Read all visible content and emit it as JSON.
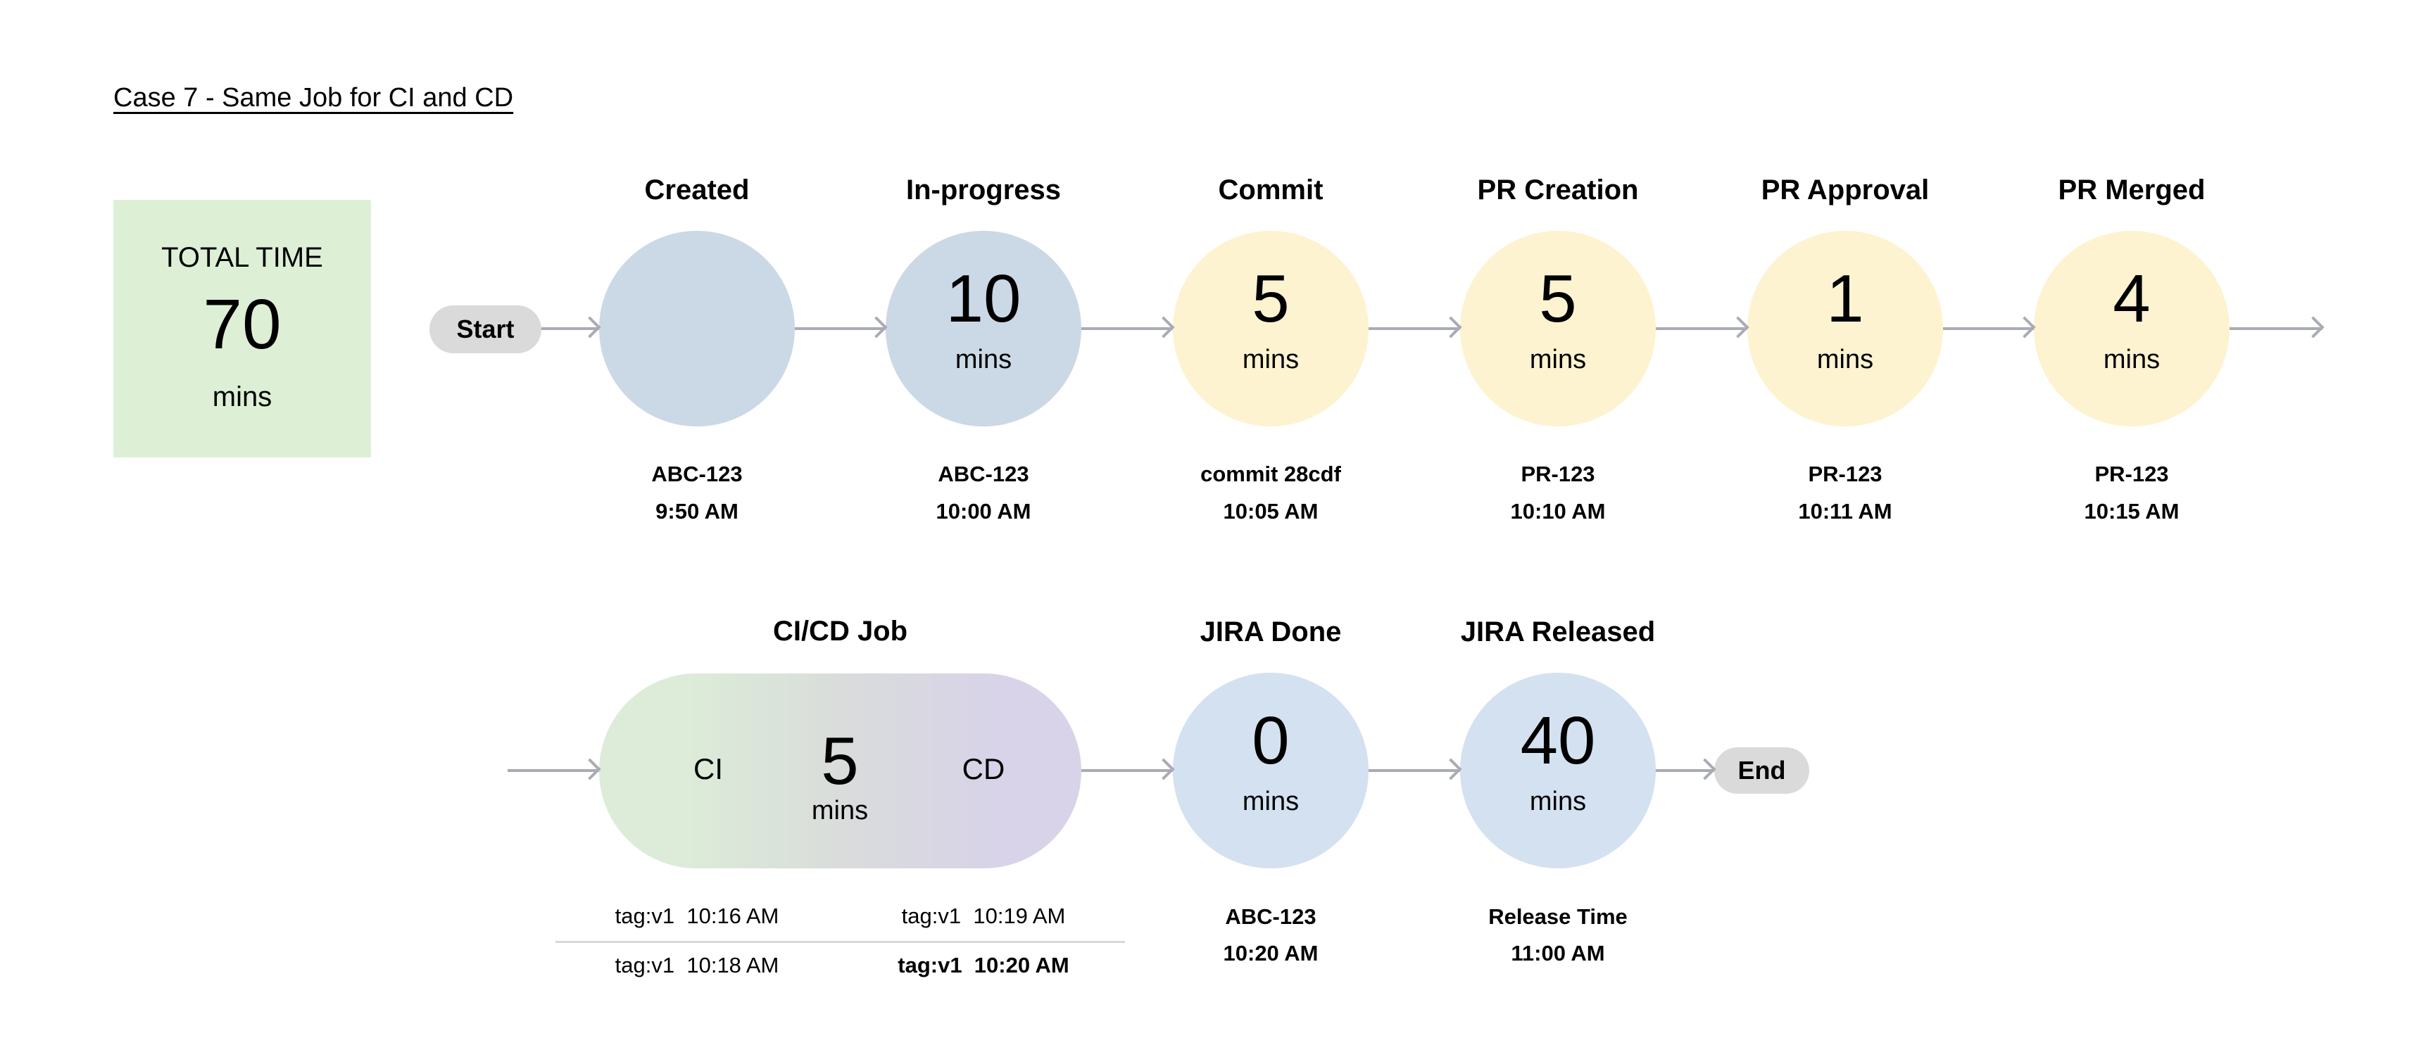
{
  "title": "Case 7 - Same Job for CI and CD",
  "total": {
    "label": "TOTAL TIME",
    "value": "70",
    "unit": "mins"
  },
  "start": "Start",
  "end": "End",
  "stages": [
    {
      "title": "Created",
      "value": "",
      "unit": "",
      "line1": "ABC-123",
      "line2": "9:50 AM",
      "color": "#cbd9e6"
    },
    {
      "title": "In-progress",
      "value": "10",
      "unit": "mins",
      "line1": "ABC-123",
      "line2": "10:00 AM",
      "color": "#cbd9e6"
    },
    {
      "title": "Commit",
      "value": "5",
      "unit": "mins",
      "line1": "commit 28cdf",
      "line2": "10:05 AM",
      "color": "#fdf3d0"
    },
    {
      "title": "PR Creation",
      "value": "5",
      "unit": "mins",
      "line1": "PR-123",
      "line2": "10:10 AM",
      "color": "#fdf3d0"
    },
    {
      "title": "PR Approval",
      "value": "1",
      "unit": "mins",
      "line1": "PR-123",
      "line2": "10:11 AM",
      "color": "#fdf3d0"
    },
    {
      "title": "PR Merged",
      "value": "4",
      "unit": "mins",
      "line1": "PR-123",
      "line2": "10:15 AM",
      "color": "#fdf3d0"
    }
  ],
  "cicd": {
    "title": "CI/CD Job",
    "ci": "CI",
    "cd": "CD",
    "value": "5",
    "unit": "mins",
    "tags": [
      [
        "tag:v1  10:16 AM",
        "tag:v1  10:19 AM"
      ],
      [
        "tag:v1  10:18 AM",
        "tag:v1  10:20 AM"
      ]
    ]
  },
  "stages2": [
    {
      "title": "JIRA Done",
      "value": "0",
      "unit": "mins",
      "line1": "ABC-123",
      "line2": "10:20 AM",
      "color": "#d4e1f0"
    },
    {
      "title": "JIRA Released",
      "value": "40",
      "unit": "mins",
      "line1": "Release Time",
      "line2": "11:00 AM",
      "color": "#d4e1f0"
    }
  ]
}
